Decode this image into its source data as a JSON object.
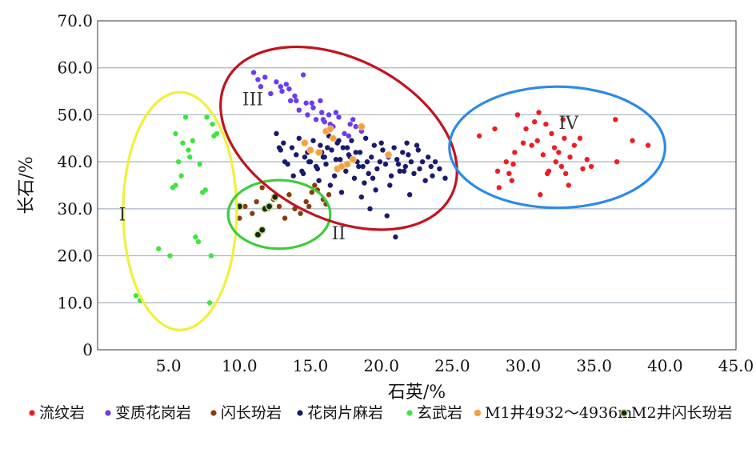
{
  "chart_data": {
    "type": "scatter",
    "xlabel": "石英/%",
    "ylabel": "长石/%",
    "xlim": [
      0,
      45
    ],
    "ylim": [
      0,
      70
    ],
    "xticks": [
      "5.0",
      "10.0",
      "15.0",
      "20.0",
      "25.0",
      "30.0",
      "35.0",
      "40.0",
      "45.0"
    ],
    "yticks": [
      "0",
      "10.0",
      "20.0",
      "30.0",
      "40.0",
      "50.0",
      "60.0",
      "70.0"
    ],
    "grid": "horizontal",
    "legend_position": "bottom",
    "regions": [
      {
        "label": "I",
        "color": "#f0f03c",
        "cx": 5.8,
        "cy": 29.5,
        "rx": 4.0,
        "ry": 25.3,
        "label_x": 1.5,
        "label_y": 27.5
      },
      {
        "label": "II",
        "color": "#3ccc3c",
        "cx": 12.8,
        "cy": 28.8,
        "rx": 3.6,
        "ry": 7.3,
        "label_x": 16.5,
        "label_y": 23.5
      },
      {
        "label": "III",
        "color": "#c0141e",
        "cx": 17.0,
        "cy": 45.0,
        "rx": 8.9,
        "ry": 17.0,
        "rotate": 27,
        "label_x": 10.2,
        "label_y": 52.0
      },
      {
        "label": "IV",
        "color": "#2d8ae6",
        "cx": 32.4,
        "cy": 43.1,
        "rx": 7.6,
        "ry": 12.9,
        "label_x": 32.5,
        "label_y": 47.0
      }
    ],
    "series": [
      {
        "name": "流纹岩",
        "color": "#ee1c24",
        "x": [
          26.9,
          28.0,
          28.2,
          28.3,
          28.8,
          29.0,
          29.3,
          29.4,
          29.6,
          30.0,
          30.2,
          30.6,
          31.0,
          31.1,
          31.2,
          31.4,
          31.6,
          31.7,
          31.8,
          32.0,
          32.2,
          32.3,
          32.5,
          32.7,
          32.8,
          33.0,
          33.2,
          33.3,
          33.6,
          34.0,
          34.2,
          34.5,
          34.8,
          36.5,
          36.6,
          37.7,
          38.8,
          29.2,
          30.8,
          32.9
        ],
        "y": [
          45.5,
          47.0,
          38.0,
          34.5,
          40.0,
          37.5,
          39.5,
          42.0,
          50.0,
          44.0,
          47.0,
          43.5,
          44.5,
          50.5,
          33.0,
          41.5,
          48.0,
          37.5,
          38.0,
          46.0,
          43.0,
          40.0,
          42.0,
          39.0,
          49.0,
          37.5,
          35.0,
          41.0,
          43.5,
          45.0,
          38.5,
          40.5,
          39.0,
          49.0,
          40.0,
          44.5,
          43.5,
          36.0,
          48.5,
          45.0
        ]
      },
      {
        "name": "变质花岗岩",
        "color": "#6a3cf0",
        "x": [
          11.0,
          11.3,
          11.5,
          11.8,
          12.2,
          12.6,
          13.0,
          13.3,
          13.6,
          13.9,
          14.2,
          14.5,
          14.8,
          15.1,
          15.4,
          15.7,
          16.0,
          16.3,
          16.6,
          17.0,
          17.4,
          17.8,
          18.2,
          14.0,
          15.2,
          15.9,
          16.8,
          17.7,
          12.9,
          13.5,
          14.7,
          15.8,
          16.4,
          18.0,
          18.6
        ],
        "y": [
          59.0,
          57.5,
          56.0,
          58.0,
          54.5,
          57.0,
          55.0,
          56.5,
          53.0,
          54.0,
          51.0,
          58.5,
          50.0,
          52.5,
          49.0,
          53.0,
          48.5,
          50.0,
          47.5,
          49.5,
          46.0,
          48.0,
          47.5,
          53.0,
          51.5,
          49.0,
          50.5,
          45.5,
          56.0,
          55.5,
          52.5,
          50.5,
          48.0,
          49.0,
          46.5
        ]
      },
      {
        "name": "闪长玢岩",
        "color": "#8b3a0f",
        "x": [
          10.0,
          10.4,
          10.9,
          11.2,
          11.6,
          12.0,
          12.4,
          12.8,
          13.2,
          13.5,
          13.9,
          14.3,
          14.7,
          15.1,
          15.5,
          15.9,
          16.1,
          16.3,
          15.3,
          14.9
        ],
        "y": [
          28.0,
          30.5,
          29.0,
          31.5,
          34.5,
          30.0,
          32.0,
          30.5,
          28.0,
          33.0,
          30.0,
          29.0,
          31.5,
          33.5,
          34.0,
          32.0,
          31.0,
          33.0,
          35.0,
          30.5
        ]
      },
      {
        "name": "花岗片麻岩",
        "color": "#1a1a6e",
        "x": [
          12.6,
          12.9,
          13.1,
          13.4,
          13.7,
          14.0,
          14.2,
          14.5,
          14.8,
          15.0,
          15.2,
          15.5,
          15.7,
          15.9,
          16.1,
          16.3,
          16.5,
          16.7,
          16.9,
          17.1,
          17.3,
          17.5,
          17.7,
          17.9,
          18.1,
          18.3,
          18.5,
          18.7,
          18.9,
          19.1,
          19.3,
          19.5,
          19.7,
          19.9,
          20.1,
          20.3,
          20.5,
          20.7,
          20.9,
          21.1,
          21.3,
          21.5,
          21.7,
          21.9,
          22.1,
          22.3,
          22.5,
          22.7,
          22.9,
          23.1,
          23.3,
          23.5,
          23.8,
          24.1,
          24.5,
          21.0,
          20.4,
          22.0,
          19.2,
          18.6,
          17.2,
          16.4,
          15.6,
          14.4,
          13.8,
          12.8,
          13.2,
          14.6,
          15.4,
          16.2,
          17.0,
          17.8,
          18.8,
          19.6,
          20.6,
          21.6,
          22.6,
          23.6,
          16.8,
          18.2,
          19.4,
          20.0,
          15.8,
          17.6,
          19.0,
          21.2,
          21.8,
          18.4,
          16.0,
          14.9
        ],
        "y": [
          46.0,
          42.5,
          44.0,
          39.5,
          43.0,
          41.5,
          45.0,
          37.5,
          42.0,
          40.0,
          44.5,
          38.5,
          43.5,
          41.0,
          39.5,
          45.5,
          42.5,
          37.0,
          44.0,
          40.5,
          43.0,
          38.0,
          41.5,
          44.5,
          36.5,
          40.0,
          42.0,
          39.0,
          45.0,
          37.5,
          41.0,
          43.5,
          38.5,
          40.0,
          42.5,
          39.5,
          41.0,
          37.0,
          43.0,
          40.5,
          38.0,
          42.0,
          39.0,
          41.5,
          40.0,
          37.5,
          43.5,
          38.5,
          40.0,
          36.0,
          41.0,
          39.0,
          40.0,
          38.5,
          36.5,
          24.0,
          28.5,
          33.0,
          30.0,
          32.5,
          33.5,
          35.0,
          36.0,
          38.0,
          37.0,
          43.0,
          40.0,
          41.0,
          39.0,
          43.0,
          44.5,
          41.0,
          35.5,
          34.0,
          35.0,
          38.0,
          42.5,
          37.0,
          40.5,
          42.0,
          36.5,
          44.0,
          42.0,
          43.0,
          40.0,
          39.5,
          44.0,
          39.0,
          41.0,
          40.0
        ]
      },
      {
        "name": "玄武岩",
        "color": "#3ce63c",
        "x": [
          2.7,
          3.0,
          4.3,
          5.1,
          5.3,
          5.5,
          5.5,
          5.7,
          5.9,
          6.0,
          6.2,
          6.4,
          6.7,
          6.9,
          7.1,
          7.4,
          7.6,
          7.7,
          7.9,
          8.0,
          8.1,
          8.2,
          7.2,
          6.5,
          8.4
        ],
        "y": [
          11.5,
          10.5,
          21.5,
          20.0,
          34.5,
          46.0,
          35.0,
          40.0,
          37.0,
          44.0,
          49.5,
          42.5,
          44.5,
          24.0,
          23.0,
          33.5,
          34.0,
          49.5,
          10.0,
          20.0,
          48.0,
          45.5,
          39.5,
          41.0,
          46.0
        ]
      },
      {
        "name": "M1井4932～4936m",
        "color": "#f4a040",
        "x": [
          14.6,
          15.0,
          15.6,
          16.1,
          16.4,
          16.9,
          17.2,
          17.6,
          18.0,
          18.6,
          20.5,
          16.6
        ],
        "y": [
          44.0,
          42.5,
          42.0,
          46.5,
          47.0,
          38.5,
          39.0,
          39.5,
          40.5,
          47.5,
          41.5,
          45.0
        ]
      },
      {
        "name": "M2井闪长玢岩",
        "color": "#0f2a0f",
        "x": [
          10.0,
          11.3,
          11.6,
          11.8,
          12.1,
          12.5
        ],
        "y": [
          30.5,
          24.5,
          25.5,
          30.0,
          30.5,
          32.5
        ]
      }
    ]
  }
}
